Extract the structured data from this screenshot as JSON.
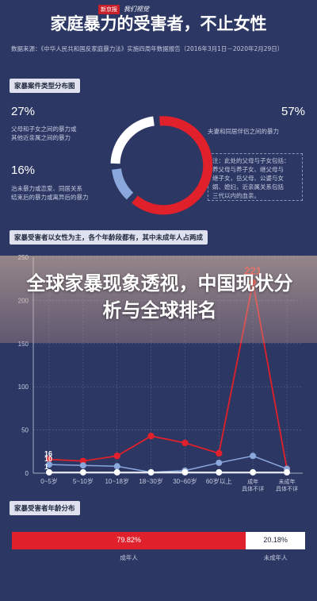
{
  "header": {
    "title": "家庭暴力的受害者，不止女性",
    "logo_text": "新京报",
    "logo_sub": "我们视觉",
    "source": "数据来源：《中华人民共和国反家庭暴力法》实施四周年数据报告（2016年3月1日－2020年2月29日）"
  },
  "section1": {
    "chip": "家暴案件类型分布图",
    "left_top": {
      "pct": "27%",
      "text1": "父母和子女之间的暴力或",
      "text2": "其他近亲属之间的暴力"
    },
    "left_bottom": {
      "pct": "16%",
      "text1": "治未暴力或恋爱、同居关系",
      "text2": "结束后的暴力或离异后的暴力"
    },
    "right_top": {
      "pct": "57%",
      "text": "夫妻和同居伴侣之间的暴力"
    },
    "note": [
      "注：此处的父母与子女包括：",
      "养父母与养子女、继父母与",
      "继子女，岳父母、公婆与女",
      "婿、媳妇，近亲属关系包括",
      "三代以内的血亲。"
    ],
    "colors": {
      "red": "#e0202a",
      "white": "#ffffff",
      "blue": "#8aa8dc"
    }
  },
  "section2": {
    "chip": "家暴受害者以女性为主，各个年龄段都有，其中未成年人占两成",
    "banner": "全球家暴现象透视，中国现状分析与全球排名",
    "chart_data": {
      "type": "line",
      "categories": [
        "0~5岁",
        "5~10岁",
        "10~18岁",
        "18~30岁",
        "30~60岁",
        "60岁以上",
        "成年\n具体不详",
        "未成年\n具体不详"
      ],
      "ylim": [
        0,
        250
      ],
      "yticks": [
        0,
        50,
        100,
        150,
        200,
        250
      ],
      "series": [
        {
          "color": "#e0202a",
          "values": [
            16,
            14,
            20,
            43,
            35,
            23,
            221,
            5
          ]
        },
        {
          "color": "#8aa8dc",
          "values": [
            10,
            9,
            8,
            1,
            3,
            12,
            20,
            5
          ]
        },
        {
          "color": "#ffffff",
          "values": [
            1,
            1,
            1,
            1,
            1,
            1,
            1,
            1
          ]
        }
      ],
      "point_labels": [
        {
          "series": 0,
          "index": 0,
          "text": "16"
        },
        {
          "series": 1,
          "index": 0,
          "text": "10"
        },
        {
          "series": 2,
          "index": 0,
          "text": "1"
        },
        {
          "series": 0,
          "index": 6,
          "text": "221"
        }
      ]
    }
  },
  "section3": {
    "chip": "家暴受害者年龄分布",
    "adult_pct": "79.82%",
    "minor_pct": "20.18%",
    "adult_label": "成年人",
    "minor_label": "未成年人",
    "adult_value": 79.82
  }
}
